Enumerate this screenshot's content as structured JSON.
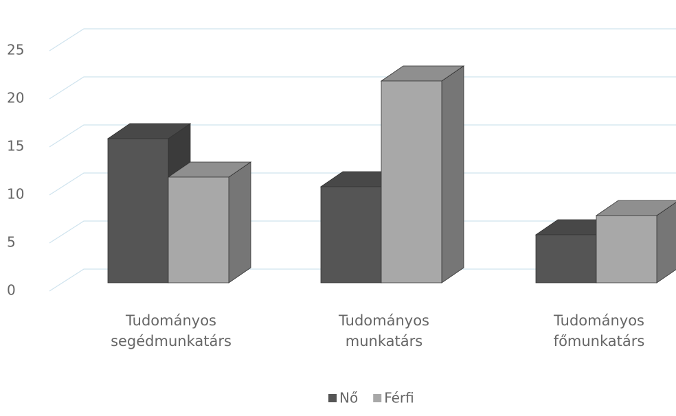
{
  "chart_data": {
    "type": "bar3d",
    "categories": [
      "Tudományos segédmunkatárs",
      "Tudományos munkatárs",
      "Tudományos főmunkatárs"
    ],
    "series": [
      {
        "name": "Nő",
        "color": "#555555",
        "values": [
          15,
          10,
          5
        ]
      },
      {
        "name": "Férfi",
        "color": "#a8a8a8",
        "values": [
          11,
          21,
          7
        ]
      }
    ],
    "ylim": [
      0,
      25
    ],
    "yticks": [
      0,
      5,
      10,
      15,
      20,
      25
    ],
    "grid": true,
    "legend": "bottom"
  }
}
